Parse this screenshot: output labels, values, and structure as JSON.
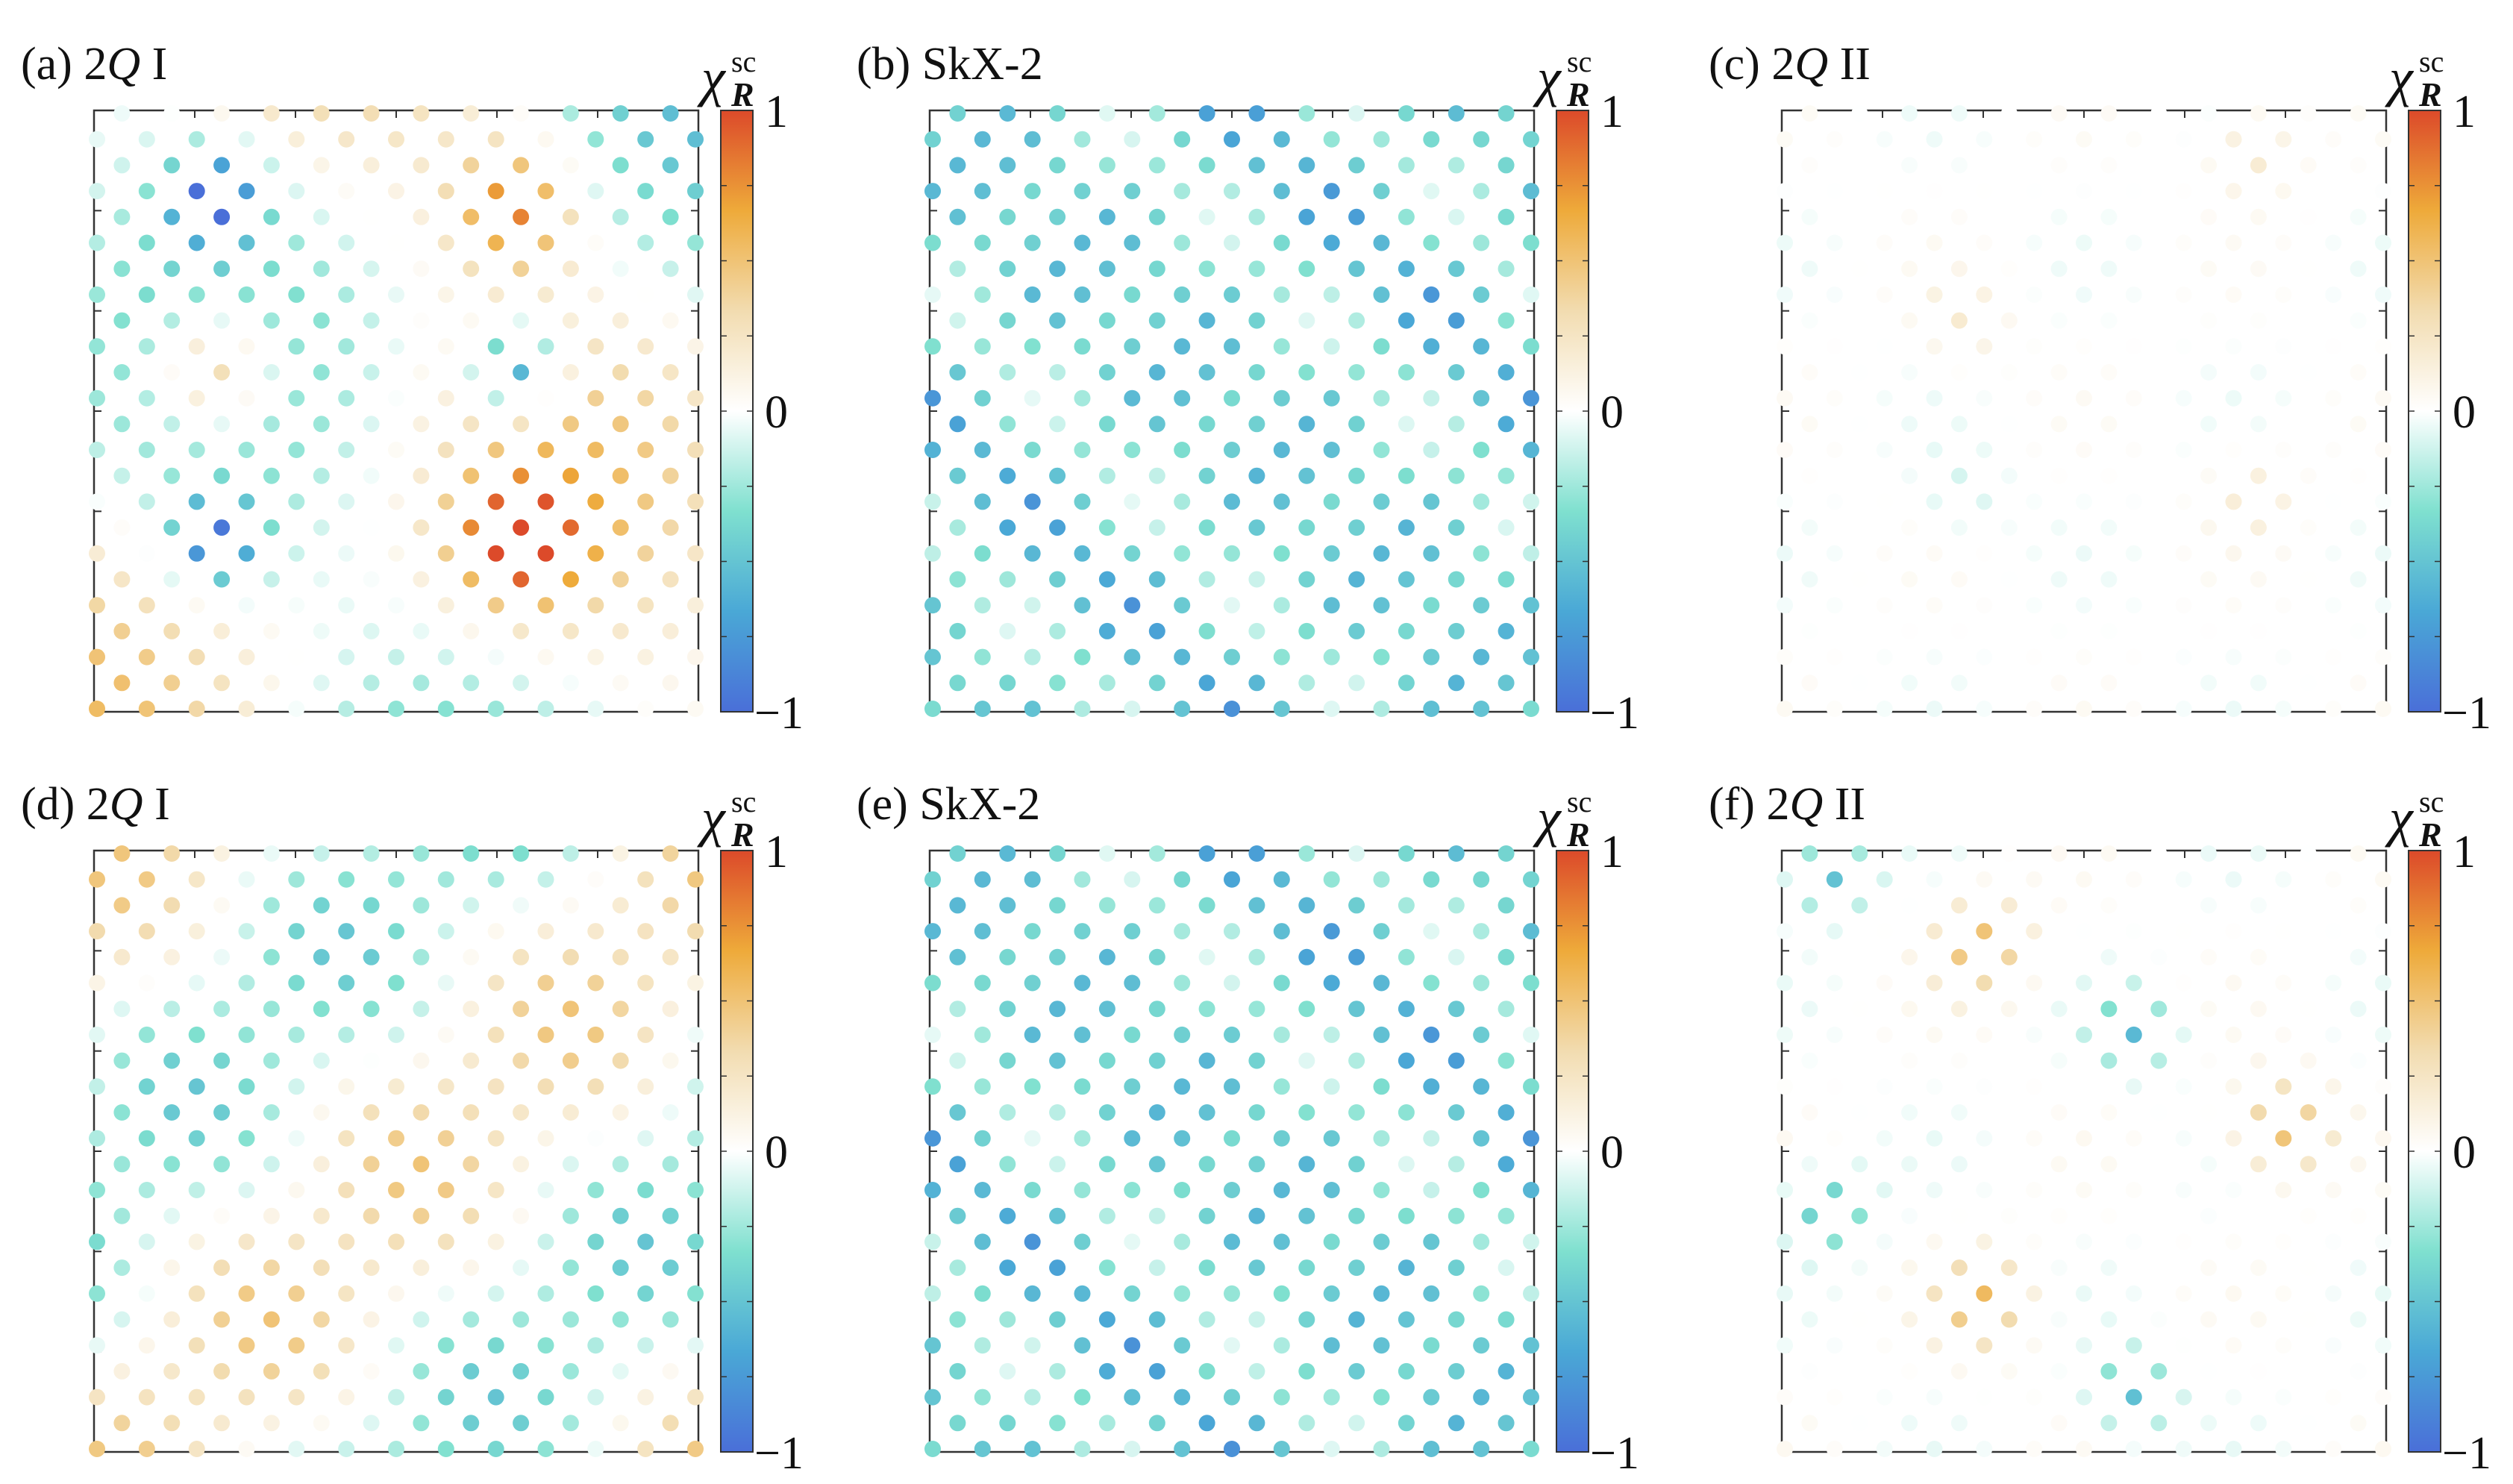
{
  "figure": {
    "colorbar": {
      "symbol": "χ",
      "subscript": "R",
      "superscript": "sc",
      "max_label": "1",
      "mid_label": "0",
      "min_label": "−1",
      "colors": [
        "#4a6fd8",
        "#4aa8d6",
        "#7fe0cf",
        "#ffffff",
        "#f2dcb0",
        "#eeaa3a",
        "#dc4a2a"
      ]
    }
  },
  "chart_data": [
    {
      "type": "heatmap",
      "panel_label": "(a)",
      "title_plain_pre": "2",
      "title_italic": "Q",
      "title_plain_post": " I",
      "kind": "2Q-I-a",
      "value_range": [
        -1,
        1
      ]
    },
    {
      "type": "heatmap",
      "panel_label": "(b)",
      "title_plain_pre": "SkX-2",
      "title_italic": "",
      "title_plain_post": "",
      "kind": "skx",
      "value_range": [
        -1,
        1
      ]
    },
    {
      "type": "heatmap",
      "panel_label": "(c)",
      "title_plain_pre": "2",
      "title_italic": "Q",
      "title_plain_post": " II",
      "kind": "2Q-II-c",
      "value_range": [
        -1,
        1
      ]
    },
    {
      "type": "heatmap",
      "panel_label": "(d)",
      "title_plain_pre": "2",
      "title_italic": "Q",
      "title_plain_post": " I",
      "kind": "2Q-I-d",
      "value_range": [
        -1,
        1
      ]
    },
    {
      "type": "heatmap",
      "panel_label": "(e)",
      "title_plain_pre": "SkX-2",
      "title_italic": "",
      "title_plain_post": "",
      "kind": "skx",
      "value_range": [
        -1,
        1
      ]
    },
    {
      "type": "heatmap",
      "panel_label": "(f)",
      "title_plain_pre": "2",
      "title_italic": "Q",
      "title_plain_post": " II",
      "kind": "2Q-II-f",
      "value_range": [
        -1,
        1
      ]
    }
  ]
}
